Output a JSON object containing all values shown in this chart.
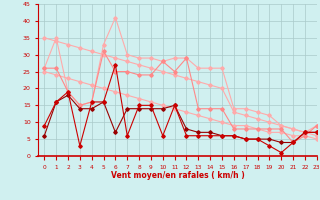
{
  "x": [
    0,
    1,
    2,
    3,
    4,
    5,
    6,
    7,
    8,
    9,
    10,
    11,
    12,
    13,
    14,
    15,
    16,
    17,
    18,
    19,
    20,
    21,
    22,
    23
  ],
  "line_pink_upper": [
    26,
    35,
    19,
    15,
    16,
    33,
    41,
    30,
    29,
    29,
    28,
    29,
    29,
    26,
    26,
    26,
    14,
    14,
    13,
    12,
    9,
    8,
    7,
    9
  ],
  "line_pink_lower": [
    26,
    26,
    19,
    15,
    16,
    31,
    25,
    25,
    24,
    24,
    28,
    25,
    29,
    14,
    14,
    14,
    8,
    8,
    8,
    8,
    8,
    4,
    6,
    9
  ],
  "line_dark1": [
    9,
    16,
    19,
    3,
    16,
    16,
    27,
    6,
    15,
    15,
    6,
    15,
    6,
    6,
    6,
    6,
    6,
    5,
    5,
    3,
    1,
    4,
    7,
    7
  ],
  "line_dark2": [
    6,
    16,
    18,
    14,
    14,
    16,
    7,
    14,
    14,
    14,
    14,
    15,
    8,
    7,
    7,
    6,
    6,
    5,
    5,
    5,
    4,
    4,
    7,
    7
  ],
  "line_trend_top": [
    35,
    34,
    33,
    32,
    31,
    30,
    29,
    28,
    27,
    26,
    25,
    24,
    23,
    22,
    21,
    20,
    13,
    12,
    11,
    10,
    9,
    8,
    7,
    6
  ],
  "line_trend_mid": [
    25,
    24,
    23,
    22,
    21,
    20,
    19,
    18,
    17,
    16,
    15,
    14,
    13,
    12,
    11,
    10,
    9,
    9,
    8,
    7,
    7,
    6,
    6,
    5
  ],
  "xlabel": "Vent moyen/en rafales ( km/h )",
  "ylim": [
    0,
    45
  ],
  "xlim": [
    -0.5,
    23
  ],
  "yticks": [
    0,
    5,
    10,
    15,
    20,
    25,
    30,
    35,
    40,
    45
  ],
  "xticks": [
    0,
    1,
    2,
    3,
    4,
    5,
    6,
    7,
    8,
    9,
    10,
    11,
    12,
    13,
    14,
    15,
    16,
    17,
    18,
    19,
    20,
    21,
    22,
    23
  ],
  "bg_color": "#d0f0f0",
  "grid_color": "#aacaca",
  "color_dark_red": "#cc0000",
  "color_light_pink": "#ffaaaa",
  "color_medium_red": "#ff5555",
  "color_dark2": "#990000"
}
